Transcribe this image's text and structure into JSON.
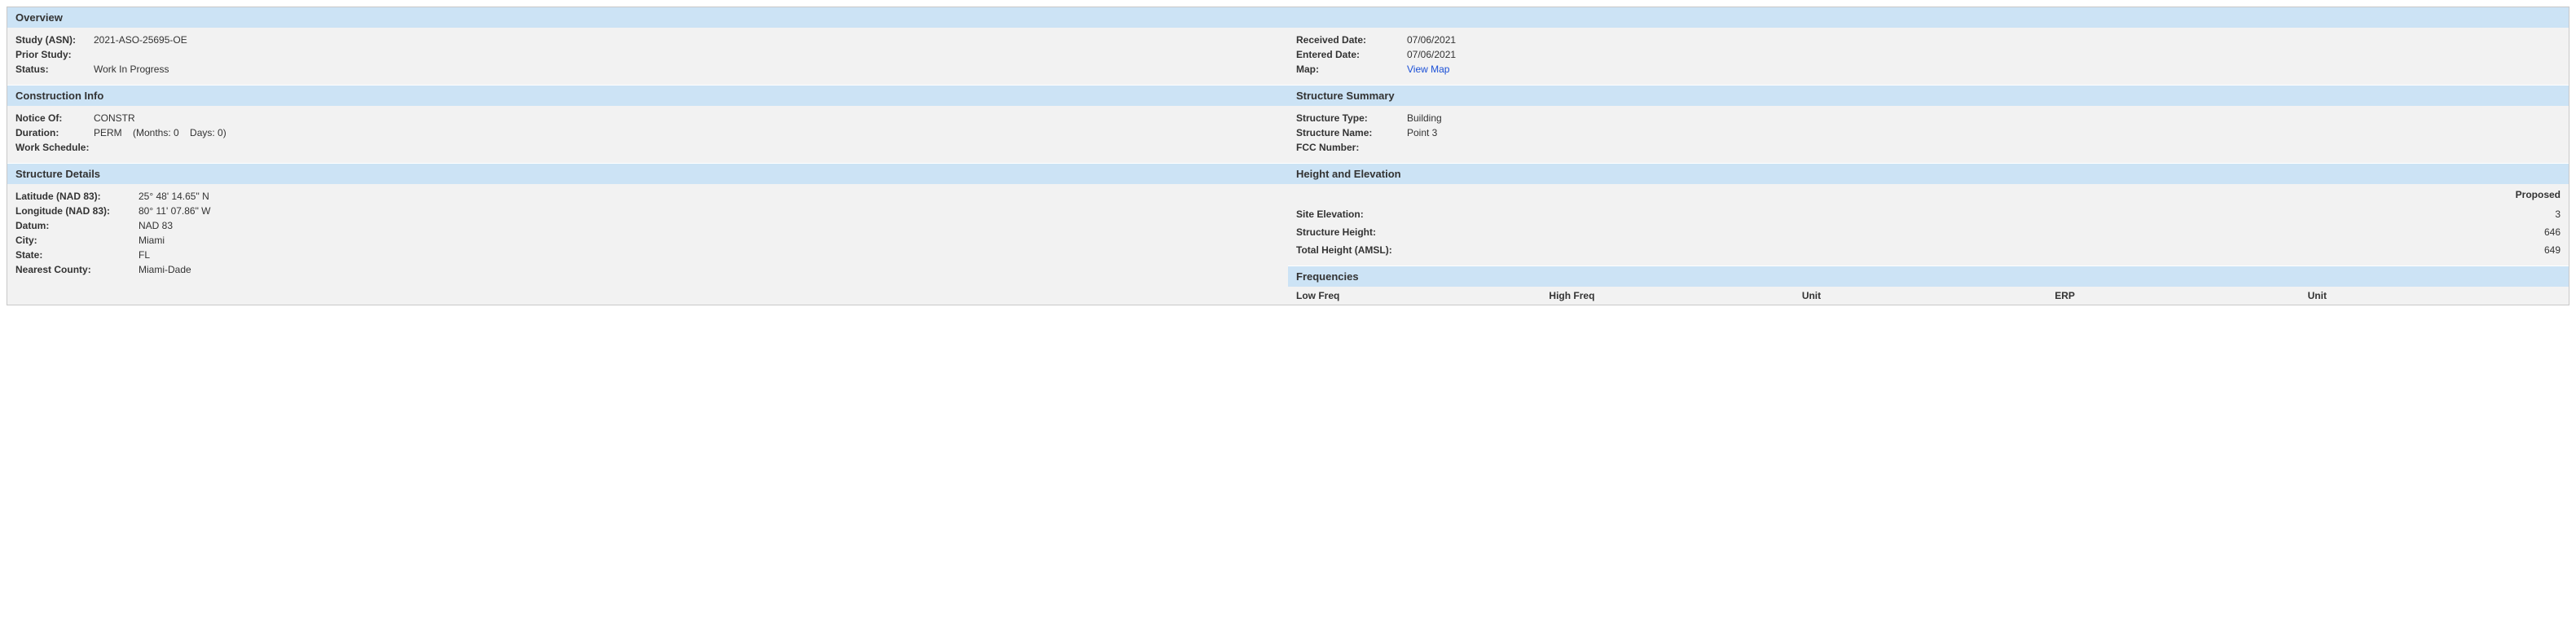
{
  "overview": {
    "title": "Overview",
    "study_asn_label": "Study (ASN):",
    "study_asn": "2021-ASO-25695-OE",
    "prior_study_label": "Prior Study:",
    "prior_study": "",
    "status_label": "Status:",
    "status": "Work In Progress",
    "received_label": "Received Date:",
    "received": "07/06/2021",
    "entered_label": "Entered Date:",
    "entered": "07/06/2021",
    "map_label": "Map:",
    "map_link": "View Map"
  },
  "construction": {
    "title": "Construction Info",
    "notice_label": "Notice Of:",
    "notice": "CONSTR",
    "duration_label": "Duration:",
    "duration": "PERM    (Months: 0    Days: 0)",
    "work_schedule_label": "Work Schedule:",
    "work_schedule": ""
  },
  "summary": {
    "title": "Structure Summary",
    "type_label": "Structure Type:",
    "type": "Building",
    "name_label": "Structure Name:",
    "name": "Point 3",
    "fcc_label": "FCC Number:",
    "fcc": ""
  },
  "details": {
    "title": "Structure Details",
    "lat_label": "Latitude (NAD 83):",
    "lat": "25° 48' 14.65\" N",
    "lon_label": "Longitude (NAD 83):",
    "lon": "80° 11' 07.86\" W",
    "datum_label": "Datum:",
    "datum": "NAD 83",
    "city_label": "City:",
    "city": "Miami",
    "state_label": "State:",
    "state": "FL",
    "county_label": "Nearest County:",
    "county": "Miami-Dade"
  },
  "he": {
    "title": "Height and Elevation",
    "col_proposed": "Proposed",
    "rows": {
      "site_label": "Site Elevation:",
      "site": "3",
      "sh_label": "Structure Height:",
      "sh": "646",
      "th_label": "Total Height (AMSL):",
      "th": "649"
    }
  },
  "freq": {
    "title": "Frequencies",
    "cols": {
      "low": "Low Freq",
      "high": "High Freq",
      "unit1": "Unit",
      "erp": "ERP",
      "unit2": "Unit"
    }
  }
}
